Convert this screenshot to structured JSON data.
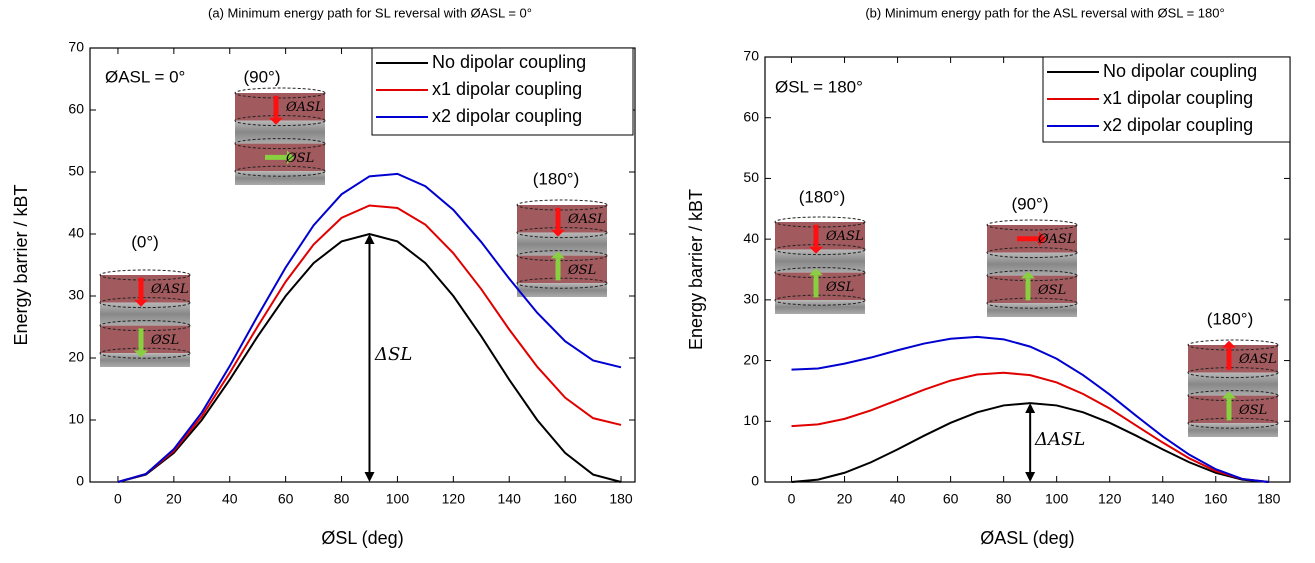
{
  "chart_data": [
    {
      "type": "line",
      "title": "(a) Minimum energy path for SL reversal with ØASL = 0°",
      "x_label": "ØSL (deg)",
      "y_label": "Energy barrier / kBT",
      "x": [
        0,
        10,
        20,
        30,
        40,
        50,
        60,
        70,
        80,
        90,
        100,
        110,
        120,
        130,
        140,
        150,
        160,
        170,
        180
      ],
      "series": [
        {
          "name": "No dipolar coupling",
          "color": "#000000",
          "values": [
            0,
            1.2,
            4.7,
            10,
            16.5,
            23.5,
            30,
            35.3,
            38.8,
            40,
            38.8,
            35.3,
            30,
            23.5,
            16.5,
            10,
            4.7,
            1.2,
            0
          ]
        },
        {
          "name": "x1 dipolar coupling",
          "color": "#e00000",
          "values": [
            0,
            1.3,
            5.0,
            10.6,
            17.6,
            25.1,
            32.3,
            38.3,
            42.6,
            44.6,
            44.2,
            41.5,
            36.9,
            31.1,
            24.6,
            18.6,
            13.6,
            10.3,
            9.2
          ]
        },
        {
          "name": "x2 dipolar coupling",
          "color": "#0000d0",
          "values": [
            0,
            1.3,
            5.3,
            11.2,
            18.7,
            26.8,
            34.6,
            41.4,
            46.4,
            49.3,
            49.7,
            47.7,
            43.9,
            38.7,
            32.8,
            27.3,
            22.7,
            19.6,
            18.5
          ]
        }
      ],
      "xlim": [
        -10,
        185
      ],
      "ylim": [
        0,
        70
      ],
      "xticks": [
        0,
        20,
        40,
        60,
        80,
        100,
        120,
        140,
        160,
        180
      ],
      "yticks": [
        0,
        10,
        20,
        30,
        40,
        50,
        60,
        70
      ],
      "legend": "upper right",
      "annotation": "ØASL = 0°",
      "barrier_label": "ΔSL",
      "insets": [
        {
          "label": "(0°)",
          "top": "ØASL",
          "bottom": "ØSL"
        },
        {
          "label": "(90°)",
          "top": "ØASL",
          "bottom": "ØSL"
        },
        {
          "label": "(180°)",
          "top": "ØASL",
          "bottom": "ØSL"
        }
      ]
    },
    {
      "type": "line",
      "title": "(b) Minimum energy path for the ASL reversal with ØSL = 180°",
      "x_label": "ØASL (deg)",
      "y_label": "Energy barrier / kBT",
      "x": [
        0,
        10,
        20,
        30,
        40,
        50,
        60,
        70,
        80,
        90,
        100,
        110,
        120,
        130,
        140,
        150,
        160,
        170,
        180
      ],
      "series": [
        {
          "name": "No dipolar coupling",
          "color": "#000000",
          "values": [
            0,
            0.39,
            1.52,
            3.25,
            5.37,
            7.63,
            9.75,
            11.48,
            12.61,
            13,
            12.61,
            11.48,
            9.75,
            7.63,
            5.37,
            3.25,
            1.52,
            0.39,
            0
          ]
        },
        {
          "name": "x1 dipolar coupling",
          "color": "#e00000",
          "values": [
            9.2,
            9.5,
            10.4,
            11.8,
            13.5,
            15.2,
            16.7,
            17.7,
            18.0,
            17.6,
            16.4,
            14.5,
            12.1,
            9.3,
            6.5,
            3.9,
            1.8,
            0.5,
            0
          ]
        },
        {
          "name": "x2 dipolar coupling",
          "color": "#0000d0",
          "values": [
            18.5,
            18.7,
            19.5,
            20.5,
            21.7,
            22.8,
            23.6,
            23.9,
            23.5,
            22.3,
            20.3,
            17.6,
            14.4,
            10.9,
            7.5,
            4.5,
            2.1,
            0.5,
            0
          ]
        }
      ],
      "xlim": [
        -10,
        188
      ],
      "ylim": [
        0,
        70
      ],
      "xticks": [
        0,
        20,
        40,
        60,
        80,
        100,
        120,
        140,
        160,
        180
      ],
      "yticks": [
        0,
        10,
        20,
        30,
        40,
        50,
        60,
        70
      ],
      "legend": "upper right",
      "annotation": "ØSL = 180°",
      "barrier_label": "ΔASL",
      "insets": [
        {
          "label": "(180°)",
          "top": "ØASL",
          "bottom": "ØSL"
        },
        {
          "label": "(90°)",
          "top": "ØASL",
          "bottom": "ØSL"
        },
        {
          "label": "(180°)",
          "top": "ØASL",
          "bottom": "ØSL"
        }
      ]
    }
  ]
}
